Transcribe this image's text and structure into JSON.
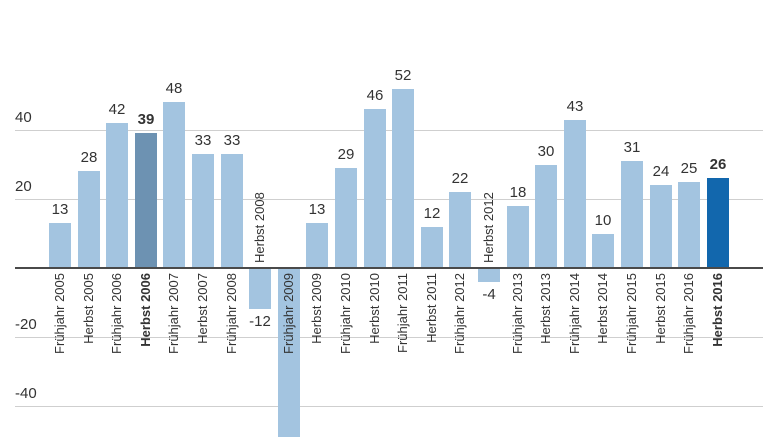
{
  "chart_data": {
    "type": "bar",
    "title": "",
    "categories": [
      "Frühjahr 2005",
      "Herbst 2005",
      "Frühjahr 2006",
      "Herbst 2006",
      "Frühjahr 2007",
      "Herbst 2007",
      "Frühjahr 2008",
      "Herbst 2008",
      "Frühjahr 2009",
      "Herbst 2009",
      "Frühjahr 2010",
      "Herbst 2010",
      "Frühjahr 2011",
      "Herbst 2011",
      "Frühjahr 2012",
      "Herbst 2012",
      "Frühjahr 2013",
      "Herbst 2013",
      "Frühjahr 2014",
      "Herbst 2014",
      "Frühjahr 2015",
      "Herbst 2015",
      "Frühjahr 2016",
      "Herbst 2016"
    ],
    "values": [
      13,
      28,
      42,
      39,
      48,
      33,
      33,
      -12,
      null,
      13,
      29,
      46,
      52,
      12,
      22,
      -4,
      18,
      30,
      43,
      10,
      31,
      24,
      25,
      26
    ],
    "highlight_muted_category": "Herbst 2006",
    "highlight_accent_category": "Herbst 2016",
    "bold_categories": [
      "Herbst 2006",
      "Herbst 2016"
    ],
    "yticks": [
      40,
      20,
      -20,
      -40
    ],
    "ylim": [
      -50,
      60
    ],
    "grid": true,
    "legend": "none",
    "xlabel": "",
    "ylabel": "",
    "colors": {
      "bar_default": "#a3c4e0",
      "bar_highlight_muted": "#6d92b2",
      "bar_highlight_accent": "#1267ad",
      "gridline": "#cfcfcf",
      "axis_line": "#4a4a4a",
      "text": "#333333"
    },
    "note": "Frühjahr 2009 bar extends below the visible chart area; its value label is not shown"
  }
}
